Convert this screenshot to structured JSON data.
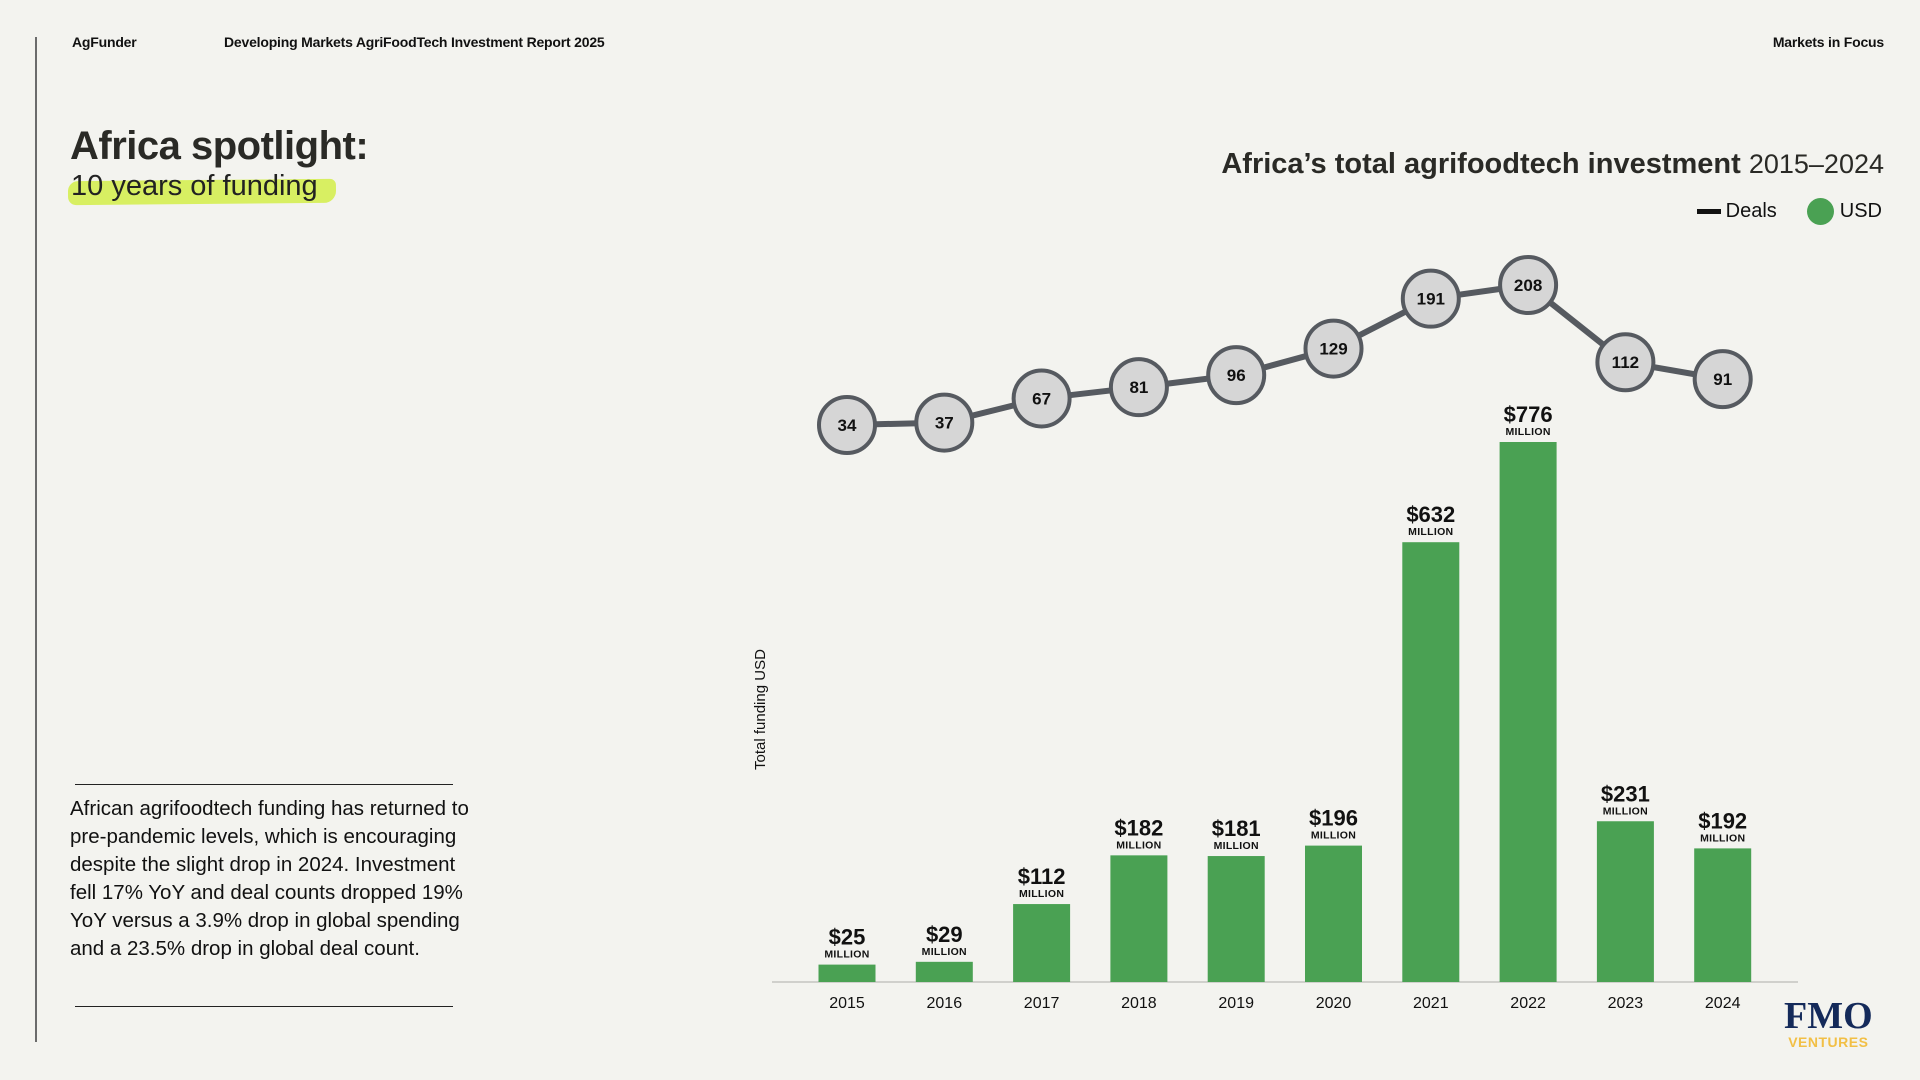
{
  "header": {
    "brand": "AgFunder",
    "report": "Developing Markets AgriFoodTech Investment Report 2025",
    "section": "Markets in Focus"
  },
  "page": {
    "title": "Africa spotlight:",
    "subtitle": "10 years of funding",
    "body": "African agrifoodtech funding has returned to pre-pandemic levels, which is encouraging despite the slight drop in 2024. Investment fell 17% YoY and deal counts dropped 19% YoY versus a 3.9% drop in global spending and a 23.5% drop in global deal count."
  },
  "logo": {
    "name": "FMO",
    "sub": "VENTURES"
  },
  "colors": {
    "bar": "#4aa153",
    "line": "#565a60",
    "circle_fill": "#d6d6d6",
    "highlight": "#d8ef62",
    "background": "#f3f3ef"
  },
  "chart_data": {
    "type": "bar",
    "title": "Africa’s total agrifoodtech investment",
    "title_years": "2015–2024",
    "xlabel": "",
    "ylabel": "Total funding USD",
    "ylim": [
      0,
      800
    ],
    "grid": false,
    "legend_position": "top-right",
    "legend": [
      {
        "name": "Deals",
        "marker": "line"
      },
      {
        "name": "USD",
        "marker": "dot"
      }
    ],
    "categories": [
      "2015",
      "2016",
      "2017",
      "2018",
      "2019",
      "2020",
      "2021",
      "2022",
      "2023",
      "2024"
    ],
    "series": [
      {
        "name": "USD",
        "type": "bar",
        "unit": "MILLION",
        "values": [
          25,
          29,
          112,
          182,
          181,
          196,
          632,
          776,
          231,
          192
        ],
        "labels": [
          "$25",
          "$29",
          "$112",
          "$182",
          "$181",
          "$196",
          "$632",
          "$776",
          "$231",
          "$192"
        ]
      },
      {
        "name": "Deals",
        "type": "line",
        "values": [
          34,
          37,
          67,
          81,
          96,
          129,
          191,
          208,
          112,
          91
        ]
      }
    ]
  }
}
